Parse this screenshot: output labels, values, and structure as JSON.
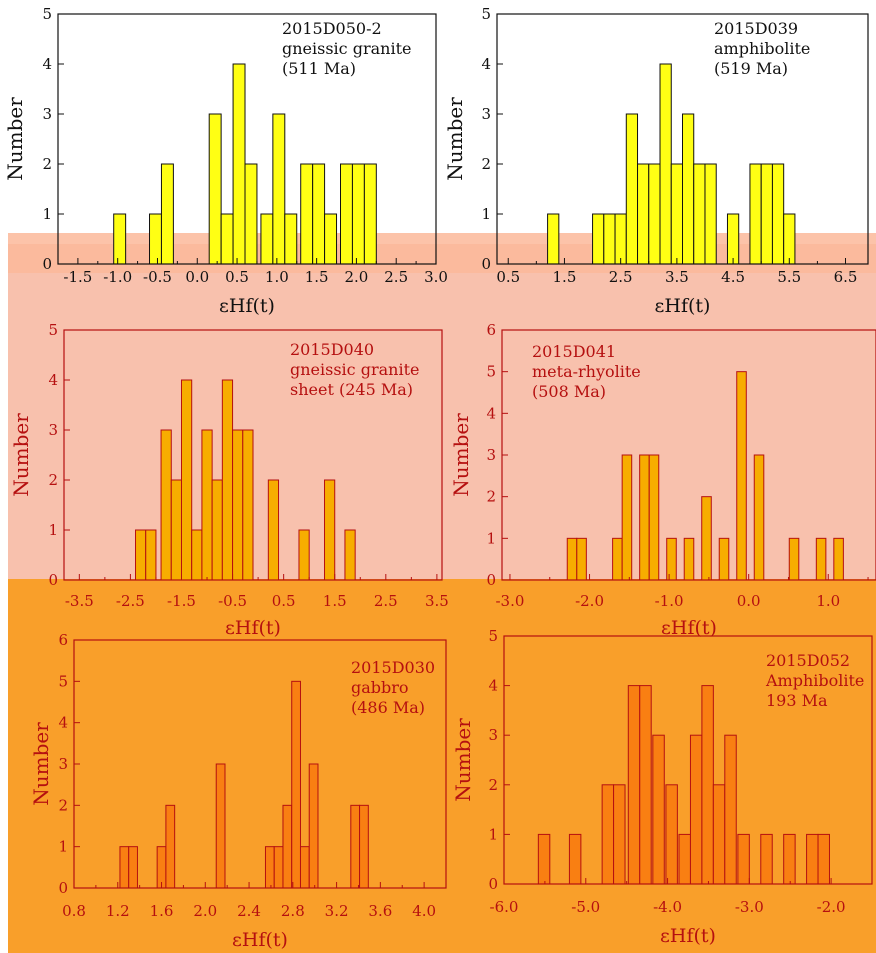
{
  "colors": {
    "band_top": "#fbb89a",
    "band_mid": "#f8c1ad",
    "band_bot": "#f99f2a",
    "dark_text": "#111111",
    "red_text": "#b51010",
    "bar_yellow": "#ffff14",
    "bar_orange": "#f7ad00",
    "bar_deep": "#f97f12"
  },
  "chart_data": [
    {
      "type": "bar",
      "title": "2015D050-2\ngneissic granite\n(511 Ma)",
      "xlabel": "εHf(t)",
      "ylabel": "Number",
      "xlim": [
        -1.75,
        3.0
      ],
      "ylim": [
        0,
        5
      ],
      "xticks": [
        -1.5,
        -1.0,
        -0.5,
        0.0,
        0.5,
        1.0,
        1.5,
        2.0,
        2.5,
        3.0
      ],
      "yticks": [
        0,
        1,
        2,
        3,
        4,
        5
      ],
      "bin_width": 0.15,
      "bins": [
        {
          "x0": -1.05,
          "count": 1
        },
        {
          "x0": -0.6,
          "count": 1
        },
        {
          "x0": -0.45,
          "count": 2
        },
        {
          "x0": 0.15,
          "count": 3
        },
        {
          "x0": 0.3,
          "count": 1
        },
        {
          "x0": 0.45,
          "count": 4
        },
        {
          "x0": 0.6,
          "count": 2
        },
        {
          "x0": 0.8,
          "count": 1
        },
        {
          "x0": 0.95,
          "count": 3
        },
        {
          "x0": 1.1,
          "count": 1
        },
        {
          "x0": 1.3,
          "count": 2
        },
        {
          "x0": 1.45,
          "count": 2
        },
        {
          "x0": 1.6,
          "count": 1
        },
        {
          "x0": 1.8,
          "count": 2
        },
        {
          "x0": 1.95,
          "count": 2
        },
        {
          "x0": 2.1,
          "count": 2
        }
      ]
    },
    {
      "type": "bar",
      "title": "2015D039\namphibolite\n(519 Ma)",
      "xlabel": "εHf(t)",
      "ylabel": "Number",
      "xlim": [
        0.3,
        6.9
      ],
      "ylim": [
        0,
        5
      ],
      "xticks": [
        0.5,
        1.5,
        2.5,
        3.5,
        4.5,
        5.5,
        6.5
      ],
      "yticks": [
        0,
        1,
        2,
        3,
        4,
        5
      ],
      "bin_width": 0.2,
      "bins": [
        {
          "x0": 1.2,
          "count": 1
        },
        {
          "x0": 2.0,
          "count": 1
        },
        {
          "x0": 2.2,
          "count": 1
        },
        {
          "x0": 2.4,
          "count": 1
        },
        {
          "x0": 2.6,
          "count": 3
        },
        {
          "x0": 2.8,
          "count": 2
        },
        {
          "x0": 3.0,
          "count": 2
        },
        {
          "x0": 3.2,
          "count": 4
        },
        {
          "x0": 3.4,
          "count": 2
        },
        {
          "x0": 3.6,
          "count": 3
        },
        {
          "x0": 3.8,
          "count": 2
        },
        {
          "x0": 4.0,
          "count": 2
        },
        {
          "x0": 4.4,
          "count": 1
        },
        {
          "x0": 4.8,
          "count": 2
        },
        {
          "x0": 5.0,
          "count": 2
        },
        {
          "x0": 5.2,
          "count": 2
        },
        {
          "x0": 5.4,
          "count": 1
        }
      ]
    },
    {
      "type": "bar",
      "title": "2015D040\ngneissic granite\nsheet (245 Ma)",
      "xlabel": "εHf(t)",
      "ylabel": "Number",
      "xlim": [
        -3.8,
        3.6
      ],
      "ylim": [
        0,
        5
      ],
      "xticks": [
        -3.5,
        -2.5,
        -1.5,
        -0.5,
        0.5,
        1.5,
        2.5,
        3.5
      ],
      "yticks": [
        0,
        1,
        2,
        3,
        4,
        5
      ],
      "bin_width": 0.2,
      "bins": [
        {
          "x0": -2.4,
          "count": 1
        },
        {
          "x0": -2.2,
          "count": 1
        },
        {
          "x0": -1.9,
          "count": 3
        },
        {
          "x0": -1.7,
          "count": 2
        },
        {
          "x0": -1.5,
          "count": 4
        },
        {
          "x0": -1.3,
          "count": 1
        },
        {
          "x0": -1.1,
          "count": 3
        },
        {
          "x0": -0.9,
          "count": 2
        },
        {
          "x0": -0.7,
          "count": 4
        },
        {
          "x0": -0.5,
          "count": 3
        },
        {
          "x0": -0.3,
          "count": 3
        },
        {
          "x0": 0.2,
          "count": 2
        },
        {
          "x0": 0.8,
          "count": 1
        },
        {
          "x0": 1.3,
          "count": 2
        },
        {
          "x0": 1.7,
          "count": 1
        }
      ]
    },
    {
      "type": "bar",
      "title": "2015D041\nmeta-rhyolite\n(508 Ma)",
      "xlabel": "εHf(t)",
      "ylabel": "Number",
      "xlim": [
        -3.1,
        1.6
      ],
      "ylim": [
        0,
        6
      ],
      "xticks": [
        -3.0,
        -2.0,
        -1.0,
        0.0,
        1.0
      ],
      "yticks": [
        0,
        1,
        2,
        3,
        4,
        5,
        6
      ],
      "bin_width": 0.12,
      "bins": [
        {
          "x0": -2.28,
          "count": 1
        },
        {
          "x0": -2.16,
          "count": 1
        },
        {
          "x0": -1.71,
          "count": 1
        },
        {
          "x0": -1.59,
          "count": 3
        },
        {
          "x0": -1.37,
          "count": 3
        },
        {
          "x0": -1.25,
          "count": 3
        },
        {
          "x0": -1.03,
          "count": 1
        },
        {
          "x0": -0.81,
          "count": 1
        },
        {
          "x0": -0.59,
          "count": 2
        },
        {
          "x0": -0.37,
          "count": 1
        },
        {
          "x0": -0.15,
          "count": 5
        },
        {
          "x0": 0.07,
          "count": 3
        },
        {
          "x0": 0.51,
          "count": 1
        },
        {
          "x0": 0.85,
          "count": 1
        },
        {
          "x0": 1.07,
          "count": 1
        }
      ]
    },
    {
      "type": "bar",
      "title": "2015D030\ngabbro\n(486 Ma)",
      "xlabel": "εHf(t)",
      "ylabel": "Number",
      "xlim": [
        0.8,
        4.2
      ],
      "ylim": [
        0,
        6
      ],
      "xticks": [
        0.8,
        1.2,
        1.6,
        2.0,
        2.4,
        2.8,
        3.2,
        3.6,
        4.0
      ],
      "yticks": [
        0,
        1,
        2,
        3,
        4,
        5,
        6
      ],
      "bin_width": 0.08,
      "bins": [
        {
          "x0": 1.22,
          "count": 1
        },
        {
          "x0": 1.3,
          "count": 1
        },
        {
          "x0": 1.56,
          "count": 1
        },
        {
          "x0": 1.64,
          "count": 2
        },
        {
          "x0": 2.1,
          "count": 3
        },
        {
          "x0": 2.55,
          "count": 1
        },
        {
          "x0": 2.63,
          "count": 1
        },
        {
          "x0": 2.71,
          "count": 2
        },
        {
          "x0": 2.79,
          "count": 5
        },
        {
          "x0": 2.87,
          "count": 1
        },
        {
          "x0": 2.95,
          "count": 3
        },
        {
          "x0": 3.33,
          "count": 2
        },
        {
          "x0": 3.41,
          "count": 2
        }
      ]
    },
    {
      "type": "bar",
      "title": "2015D052\nAmphibolite\n193 Ma",
      "xlabel": "εHf(t)",
      "ylabel": "Number",
      "xlim": [
        -6.0,
        -1.5
      ],
      "ylim": [
        0,
        5
      ],
      "xticks": [
        -6.0,
        -5.0,
        -4.0,
        -3.0,
        -2.0
      ],
      "yticks": [
        0,
        1,
        2,
        3,
        4,
        5
      ],
      "bin_width": 0.14,
      "bins": [
        {
          "x0": -5.58,
          "count": 1
        },
        {
          "x0": -5.2,
          "count": 1
        },
        {
          "x0": -4.8,
          "count": 2
        },
        {
          "x0": -4.66,
          "count": 2
        },
        {
          "x0": -4.48,
          "count": 4
        },
        {
          "x0": -4.34,
          "count": 4
        },
        {
          "x0": -4.18,
          "count": 3
        },
        {
          "x0": -4.02,
          "count": 2
        },
        {
          "x0": -3.86,
          "count": 1
        },
        {
          "x0": -3.72,
          "count": 3
        },
        {
          "x0": -3.58,
          "count": 4
        },
        {
          "x0": -3.44,
          "count": 2
        },
        {
          "x0": -3.3,
          "count": 3
        },
        {
          "x0": -3.14,
          "count": 1
        },
        {
          "x0": -2.86,
          "count": 1
        },
        {
          "x0": -2.58,
          "count": 1
        },
        {
          "x0": -2.3,
          "count": 1
        },
        {
          "x0": -2.16,
          "count": 1
        }
      ]
    }
  ]
}
